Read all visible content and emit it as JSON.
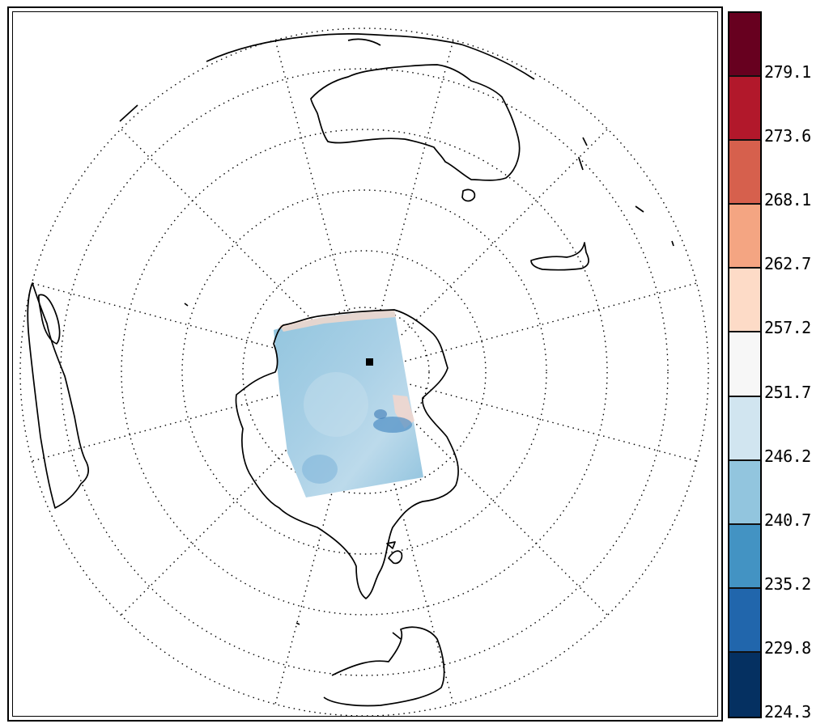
{
  "map": {
    "projection": "south-polar-stereographic",
    "graticule": "dotted",
    "field_colormap": "diverging-blue-red",
    "marker_icon": "square-marker"
  },
  "colorbar": {
    "colors": [
      "#67001f",
      "#b2182b",
      "#d6604d",
      "#f4a582",
      "#fddbc7",
      "#f7f7f7",
      "#d1e5f0",
      "#92c5de",
      "#4393c3",
      "#2166ac",
      "#053061"
    ],
    "labels": [
      "279.1",
      "273.6",
      "268.1",
      "262.7",
      "257.2",
      "251.7",
      "246.2",
      "240.7",
      "235.2",
      "229.8",
      "224.3"
    ]
  }
}
